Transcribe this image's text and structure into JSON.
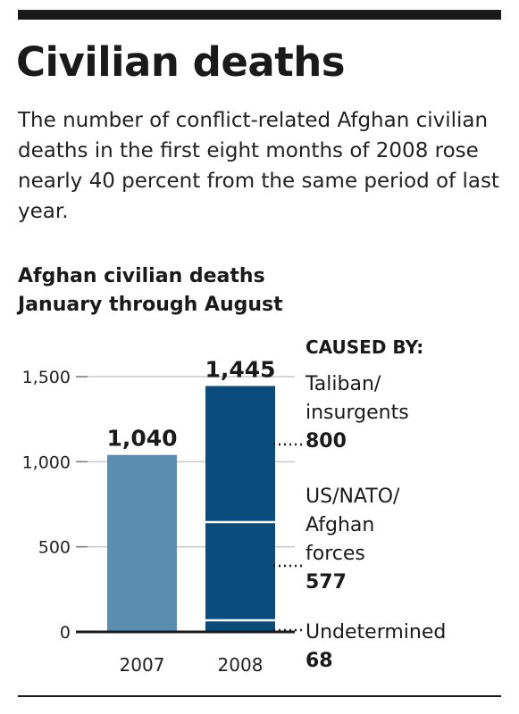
{
  "header": {
    "title": "Civilian deaths",
    "subtitle": "The number of conflict-related Afghan civilian deaths in the first eight months of 2008 rose nearly 40 percent from the same period of last year."
  },
  "chart_data": {
    "type": "bar",
    "title_lines": [
      "Afghan civilian deaths",
      "January through August"
    ],
    "categories": [
      "2007",
      "2008"
    ],
    "totals": [
      1040,
      1445
    ],
    "total_labels": [
      "1,040",
      "1,445"
    ],
    "ylim": [
      0,
      1500
    ],
    "yticks": [
      0,
      500,
      1000,
      1500
    ],
    "ytick_labels": [
      "0",
      "500",
      "1,000",
      "1,500"
    ],
    "grid": true,
    "colors": {
      "bar_2007": "#5b8db0",
      "bar_2008": "#0a4d7c",
      "segment_divider": "#ffffff",
      "grid": "#c8c8c8"
    },
    "legend_title": "CAUSED BY:",
    "breakdown_2008": [
      {
        "label_lines": [
          "Undetermined"
        ],
        "value": 68,
        "value_label": "68"
      },
      {
        "label_lines": [
          "US/NATO/",
          "Afghan",
          "forces"
        ],
        "value": 577,
        "value_label": "577"
      },
      {
        "label_lines": [
          "Taliban/",
          "insurgents"
        ],
        "value": 800,
        "value_label": "800"
      }
    ]
  }
}
